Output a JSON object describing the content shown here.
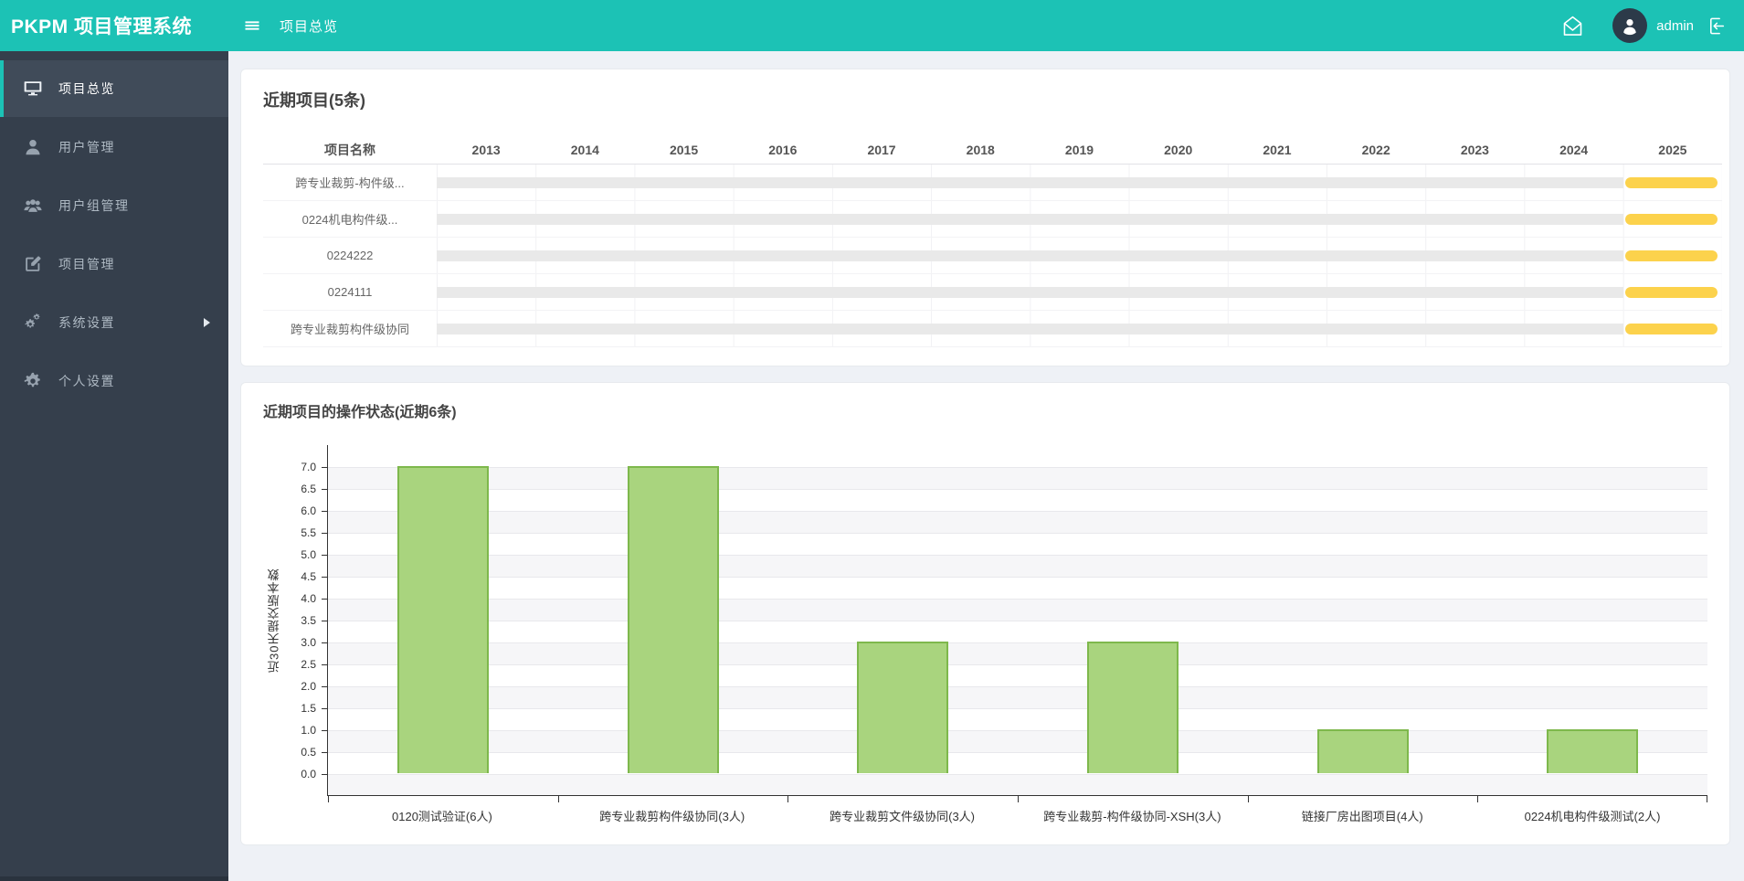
{
  "header": {
    "brand": "PKPM 项目管理系统",
    "breadcrumb": "项目总览",
    "username": "admin"
  },
  "sidebar": {
    "items": [
      {
        "label": "项目总览",
        "icon": "monitor-icon",
        "active": true
      },
      {
        "label": "用户管理",
        "icon": "user-icon"
      },
      {
        "label": "用户组管理",
        "icon": "users-icon"
      },
      {
        "label": "项目管理",
        "icon": "edit-icon"
      },
      {
        "label": "系统设置",
        "icon": "gears-icon",
        "has_submenu": true
      },
      {
        "label": "个人设置",
        "icon": "gear-icon"
      }
    ]
  },
  "gantt": {
    "title": "近期项目(5条)",
    "name_header": "项目名称",
    "years": [
      "2013",
      "2014",
      "2015",
      "2016",
      "2017",
      "2018",
      "2019",
      "2020",
      "2021",
      "2022",
      "2023",
      "2024",
      "2025"
    ],
    "rows": [
      {
        "name": "跨专业裁剪-构件级...",
        "active_year": "2025"
      },
      {
        "name": "0224机电构件级...",
        "active_year": "2025"
      },
      {
        "name": "0224222",
        "active_year": "2025"
      },
      {
        "name": "0224111",
        "active_year": "2025"
      },
      {
        "name": "跨专业裁剪构件级协同",
        "active_year": "2025"
      }
    ],
    "track_color": "#e9e9e9",
    "bar_color": "#fcd24c"
  },
  "chart_data": {
    "type": "bar",
    "title": "近期项目的操作状态(近期6条)",
    "xlabel": "",
    "ylabel": "近30天提交版本数",
    "categories": [
      "0120测试验证(6人)",
      "跨专业裁剪构件级协同(3人)",
      "跨专业裁剪文件级协同(3人)",
      "跨专业裁剪-构件级协同-XSH(3人)",
      "链接厂房出图项目(4人)",
      "0224机电构件级测试(2人)"
    ],
    "values": [
      7,
      7,
      3,
      3,
      1,
      1
    ],
    "ylim": [
      0,
      7
    ],
    "ytick_step": 0.5,
    "grid": "striped-horizontal",
    "legend": "none",
    "bar_color": "#a9d47e",
    "bar_border_color": "#7eb84c"
  },
  "colors": {
    "accent": "#1cc2b5",
    "sidebar_bg": "#353f4c",
    "page_bg": "#eef1f6"
  }
}
